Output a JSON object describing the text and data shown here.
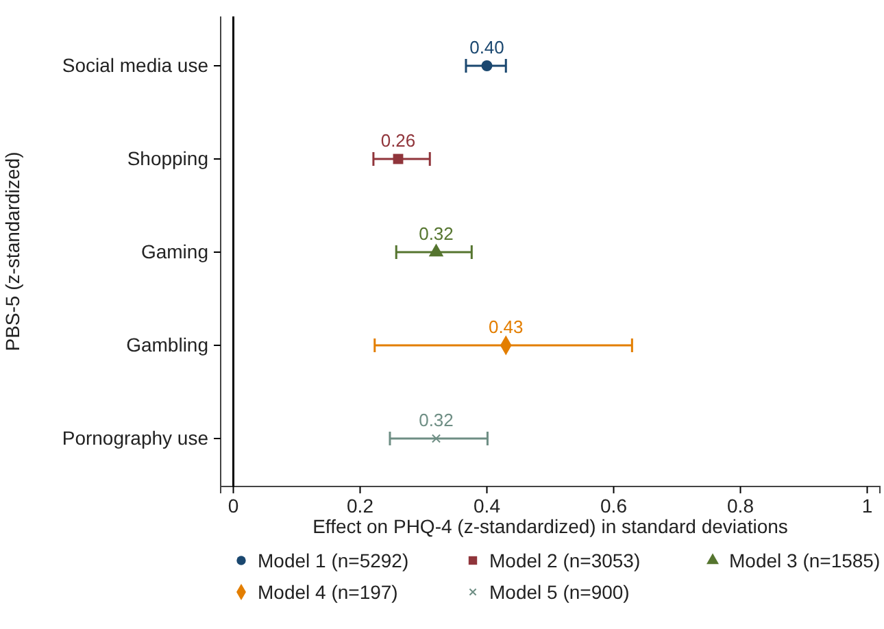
{
  "chart_data": {
    "type": "scatter",
    "orientation": "horizontal",
    "ylabel": "PBS-5 (z-standardized)",
    "xlabel": "Effect on PHQ-4 (z-standardized) in standard deviations",
    "categories": [
      "Social media use",
      "Shopping",
      "Gaming",
      "Gambling",
      "Pornography use"
    ],
    "xlim": [
      -0.02,
      1.02
    ],
    "xticks": [
      0,
      0.2,
      0.4,
      0.6,
      0.8,
      1
    ],
    "grid": false,
    "legend": "bottom",
    "ref_lines": [
      {
        "axis": "x",
        "value": 0,
        "color": "#000000"
      }
    ],
    "series": [
      {
        "name": "Model 1 (n=5292)",
        "color": "#1a476f",
        "marker": "circle",
        "values": [
          0.4,
          null,
          null,
          null,
          null
        ],
        "errors": [
          [
            0.367,
            0.43
          ],
          null,
          null,
          null,
          null
        ],
        "value_labels": [
          "0.40",
          null,
          null,
          null,
          null
        ]
      },
      {
        "name": "Model 2 (n=3053)",
        "color": "#90353b",
        "marker": "square",
        "values": [
          null,
          0.26,
          null,
          null,
          null
        ],
        "errors": [
          null,
          [
            0.221,
            0.31
          ],
          null,
          null,
          null
        ],
        "value_labels": [
          null,
          "0.26",
          null,
          null,
          null
        ]
      },
      {
        "name": "Model 3 (n=1585)",
        "color": "#55752f",
        "marker": "triangle",
        "values": [
          null,
          null,
          0.32,
          null,
          null
        ],
        "errors": [
          null,
          null,
          [
            0.257,
            0.376
          ],
          null,
          null
        ],
        "value_labels": [
          null,
          null,
          "0.32",
          null,
          null
        ]
      },
      {
        "name": "Model 4 (n=197)",
        "color": "#e37e00",
        "marker": "diamond",
        "values": [
          null,
          null,
          null,
          0.43,
          null
        ],
        "errors": [
          null,
          null,
          null,
          [
            0.223,
            0.629
          ],
          null
        ],
        "value_labels": [
          null,
          null,
          null,
          "0.43",
          null
        ]
      },
      {
        "name": "Model 5 (n=900)",
        "color": "#6e8e84",
        "marker": "cross",
        "values": [
          null,
          null,
          null,
          null,
          0.32
        ],
        "errors": [
          null,
          null,
          null,
          null,
          [
            0.247,
            0.401
          ]
        ],
        "value_labels": [
          null,
          null,
          null,
          null,
          "0.32"
        ]
      }
    ]
  }
}
